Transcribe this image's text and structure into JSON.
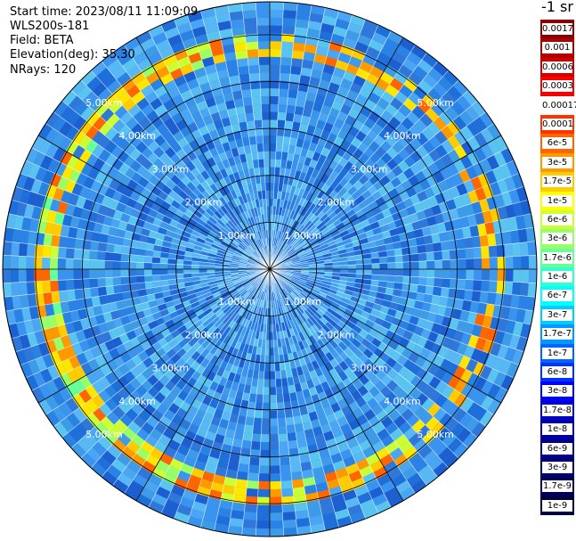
{
  "info": {
    "start_time": "Start time: 2023/08/11 11:09:09",
    "instrument": "WLS200s-181",
    "field": "Field: BETA",
    "elevation": "Elevation(deg): 35.30",
    "nrays": "NRays: 120"
  },
  "colorbar": {
    "unit": "-1 sr",
    "entries": [
      {
        "label": "0.0017",
        "color": "#8b0000"
      },
      {
        "label": "0.001",
        "color": "#b00000"
      },
      {
        "label": "0.0006",
        "color": "#d40000"
      },
      {
        "label": "0.0003",
        "color": "#f80000"
      },
      {
        "label": "0.00017",
        "color": "#ffffff"
      },
      {
        "label": "0.0001",
        "color": "#ff3300"
      },
      {
        "label": "6e-5",
        "color": "#ff6600"
      },
      {
        "label": "3e-5",
        "color": "#ff9900"
      },
      {
        "label": "1.7e-5",
        "color": "#ffcc00"
      },
      {
        "label": "1e-5",
        "color": "#ffff00"
      },
      {
        "label": "6e-6",
        "color": "#ccff33"
      },
      {
        "label": "3e-6",
        "color": "#99ff66"
      },
      {
        "label": "1.7e-6",
        "color": "#66ff99"
      },
      {
        "label": "1e-6",
        "color": "#33ffcc"
      },
      {
        "label": "6e-7",
        "color": "#00ffff"
      },
      {
        "label": "3e-7",
        "color": "#00ccff"
      },
      {
        "label": "1.7e-7",
        "color": "#0099ff"
      },
      {
        "label": "1e-7",
        "color": "#0066ff"
      },
      {
        "label": "6e-8",
        "color": "#0033ff"
      },
      {
        "label": "3e-8",
        "color": "#0000ff"
      },
      {
        "label": "1.7e-8",
        "color": "#0000d0"
      },
      {
        "label": "1e-8",
        "color": "#0000a8"
      },
      {
        "label": "6e-9",
        "color": "#000088"
      },
      {
        "label": "3e-9",
        "color": "#000070"
      },
      {
        "label": "1.7e-9",
        "color": "#000058"
      },
      {
        "label": "1e-9",
        "color": "#000040"
      }
    ]
  },
  "chart_data": {
    "type": "heatmap",
    "projection": "polar",
    "nrays": 120,
    "range_rings_km": [
      1,
      2,
      3,
      4,
      5
    ],
    "ring_labels": [
      "1.00km",
      "2.00km",
      "3.00km",
      "4.00km",
      "5.00km"
    ],
    "radial_lines": 12,
    "max_range_km": 5.7,
    "colors": {
      "background": "#3a8fd8",
      "grid": "#000000"
    },
    "features": [
      {
        "name": "aerosol_layer_ring",
        "range_km": [
          4.6,
          5.1
        ],
        "intensity": "3e-6 to 6e-5"
      }
    ]
  }
}
